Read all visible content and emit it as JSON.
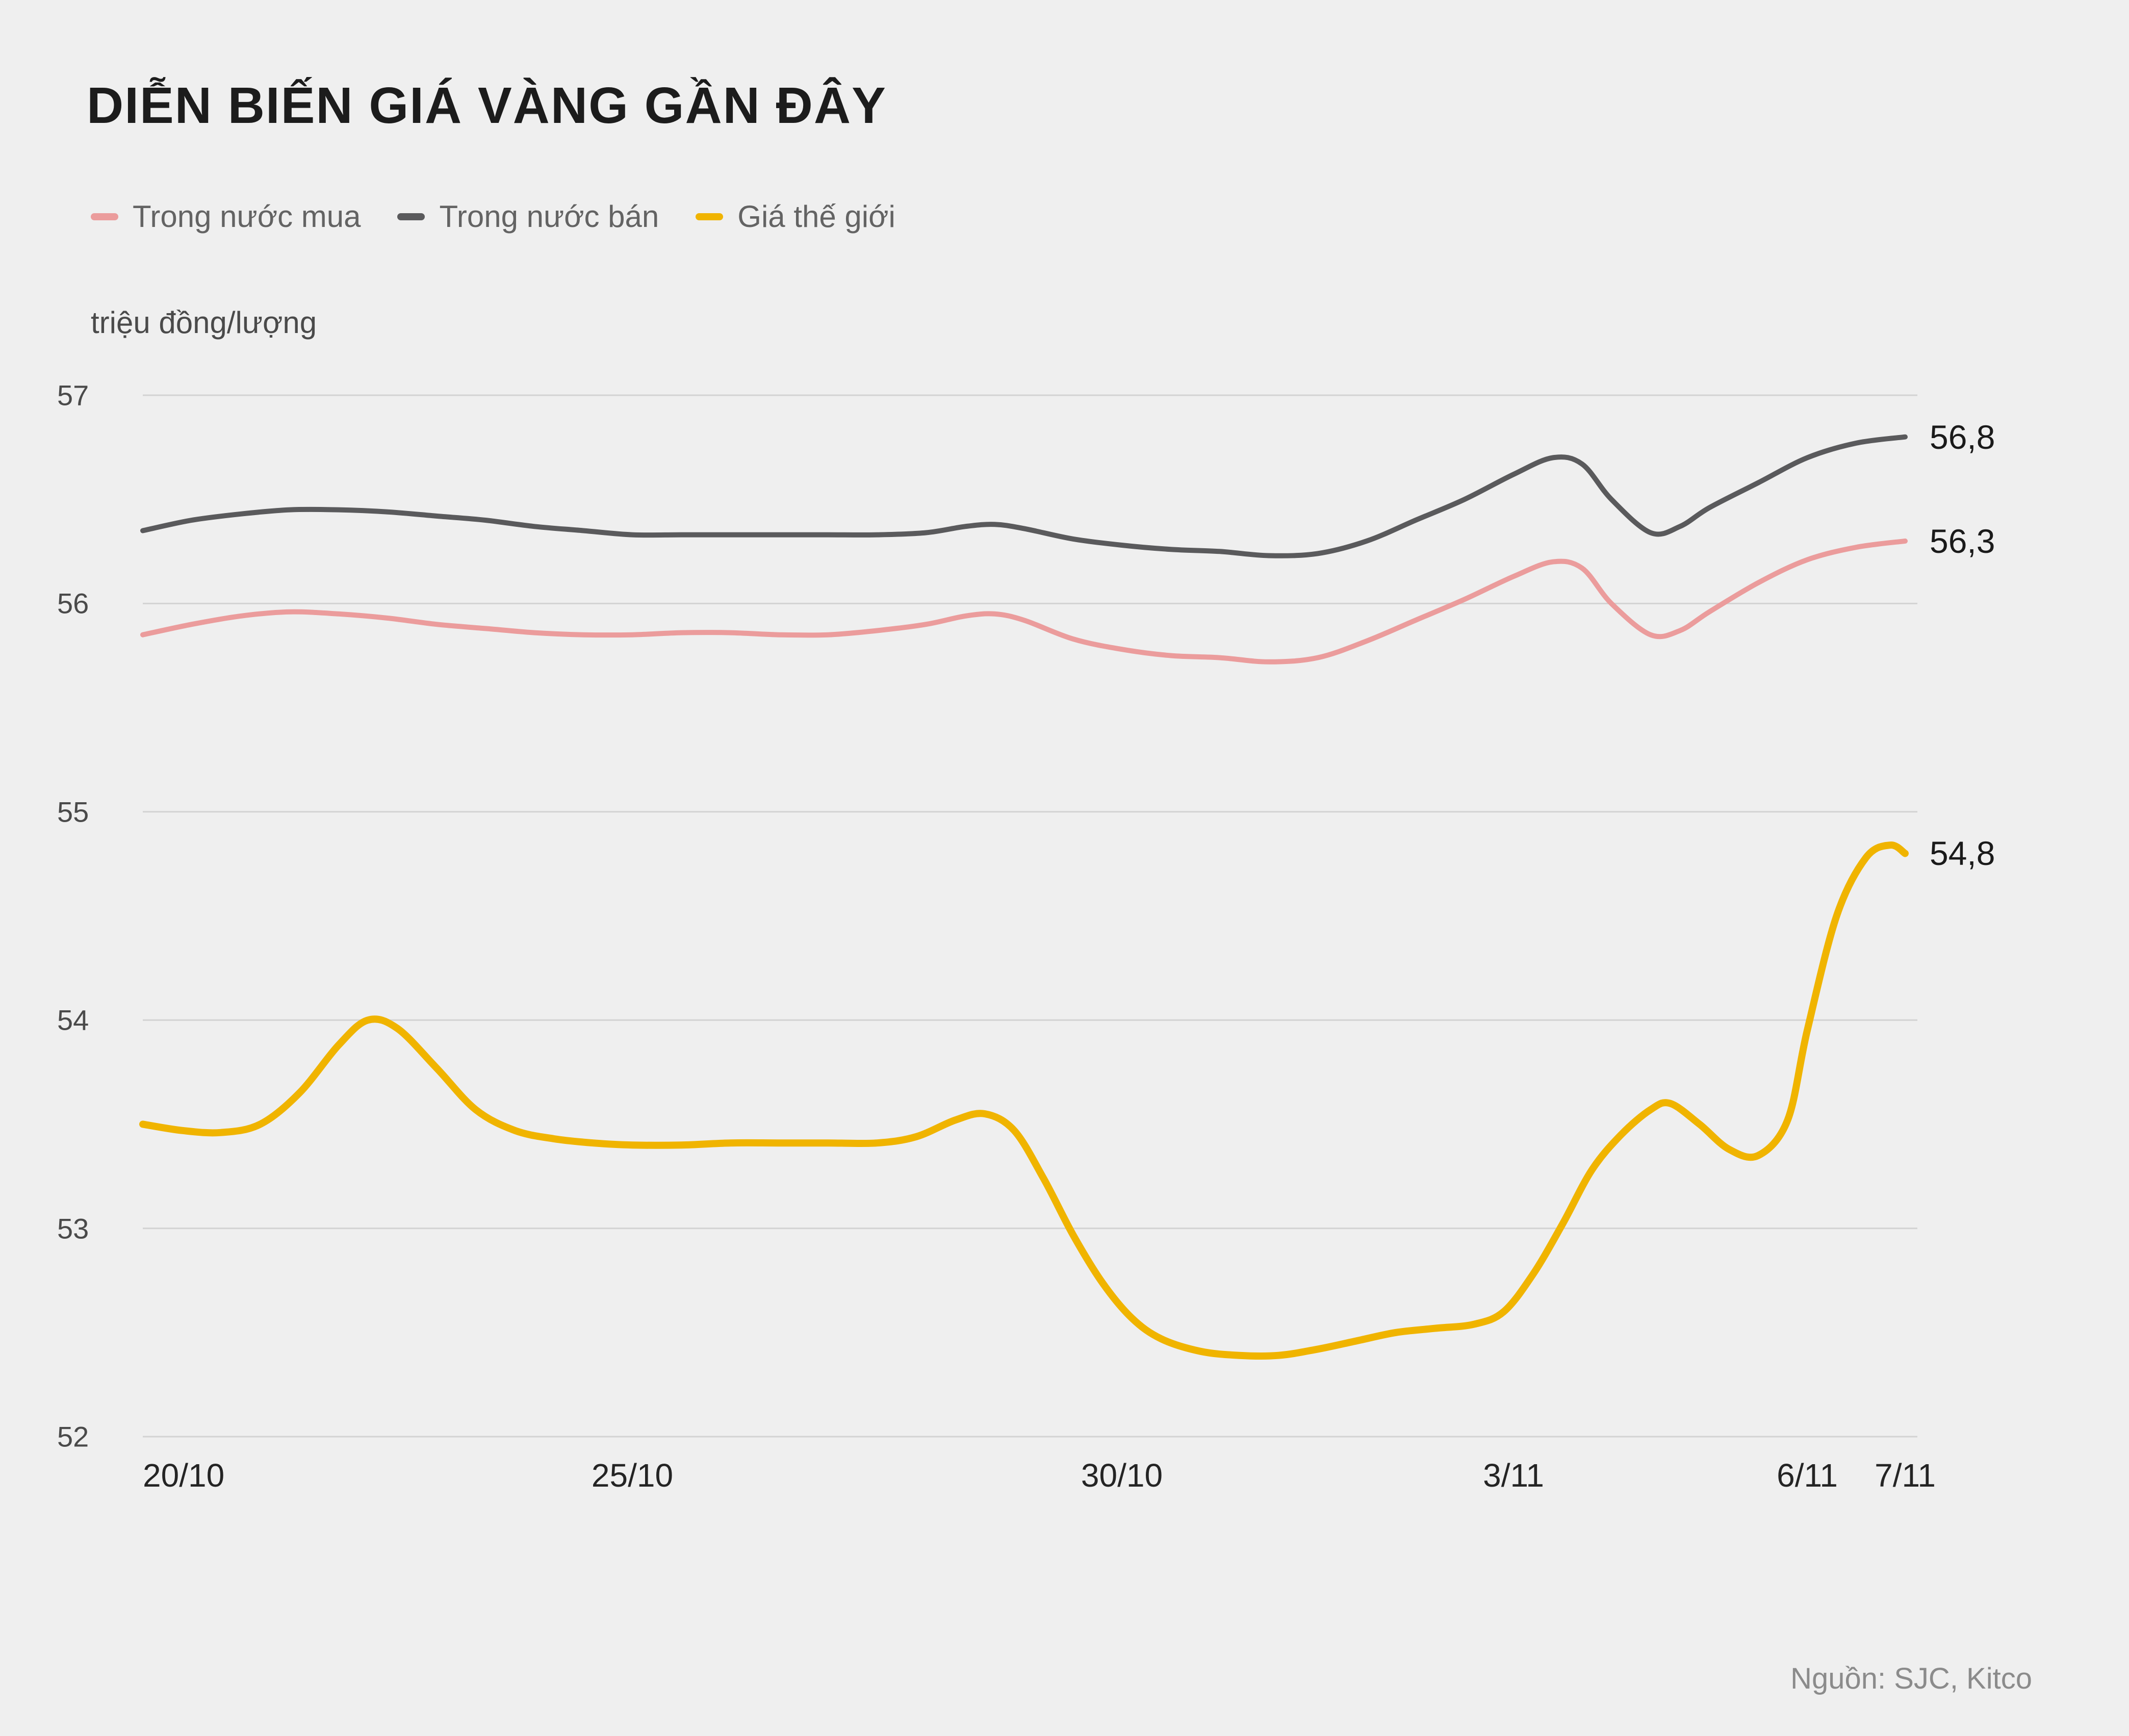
{
  "title": "DIỄN BIẾN GIÁ VÀNG GẦN ĐÂY",
  "unit_label": "triệu đồng/lượng",
  "source": "Nguồn: SJC, Kitco",
  "legend": [
    {
      "label": "Trong nước mua",
      "color": "#eb9c9c"
    },
    {
      "label": "Trong nước bán",
      "color": "#5a5a5c"
    },
    {
      "label": "Giá thế giới",
      "color": "#f0b400"
    }
  ],
  "chart_data": {
    "type": "line",
    "title": "DIỄN BIẾN GIÁ VÀNG GẦN ĐÂY",
    "ylabel": "triệu đồng/lượng",
    "ylim": [
      52,
      57
    ],
    "y_ticks": [
      57,
      56,
      55,
      54,
      53,
      52
    ],
    "x_unit": "days since 20/10",
    "x_ticks": [
      {
        "day": 0,
        "label": "20/10"
      },
      {
        "day": 5,
        "label": "25/10"
      },
      {
        "day": 10,
        "label": "30/10"
      },
      {
        "day": 14,
        "label": "3/11"
      },
      {
        "day": 17,
        "label": "6/11"
      },
      {
        "day": 18,
        "label": "7/11"
      }
    ],
    "grid": "horizontal",
    "legend_position": "top-left",
    "series": [
      {
        "name": "Trong nước mua",
        "color": "#eb9c9c",
        "line_width": 10,
        "end_label": "56,3",
        "points": [
          [
            0,
            55.85
          ],
          [
            0.5,
            55.9
          ],
          [
            1,
            55.94
          ],
          [
            1.5,
            55.96
          ],
          [
            2,
            55.95
          ],
          [
            2.5,
            55.93
          ],
          [
            3,
            55.9
          ],
          [
            3.5,
            55.88
          ],
          [
            4,
            55.86
          ],
          [
            4.5,
            55.85
          ],
          [
            5,
            55.85
          ],
          [
            5.5,
            55.86
          ],
          [
            6,
            55.86
          ],
          [
            6.5,
            55.85
          ],
          [
            7,
            55.85
          ],
          [
            7.5,
            55.87
          ],
          [
            8,
            55.9
          ],
          [
            8.4,
            55.94
          ],
          [
            8.7,
            55.95
          ],
          [
            9,
            55.92
          ],
          [
            9.5,
            55.83
          ],
          [
            10,
            55.78
          ],
          [
            10.5,
            55.75
          ],
          [
            11,
            55.74
          ],
          [
            11.5,
            55.72
          ],
          [
            12,
            55.74
          ],
          [
            12.5,
            55.82
          ],
          [
            13,
            55.92
          ],
          [
            13.5,
            56.02
          ],
          [
            14,
            56.13
          ],
          [
            14.4,
            56.2
          ],
          [
            14.7,
            56.17
          ],
          [
            15,
            56.0
          ],
          [
            15.4,
            55.85
          ],
          [
            15.7,
            55.87
          ],
          [
            16,
            55.96
          ],
          [
            16.5,
            56.1
          ],
          [
            17,
            56.21
          ],
          [
            17.5,
            56.27
          ],
          [
            18,
            56.3
          ]
        ]
      },
      {
        "name": "Trong nước bán",
        "color": "#5a5a5c",
        "line_width": 10,
        "end_label": "56,8",
        "points": [
          [
            0,
            56.35
          ],
          [
            0.5,
            56.4
          ],
          [
            1,
            56.43
          ],
          [
            1.5,
            56.45
          ],
          [
            2,
            56.45
          ],
          [
            2.5,
            56.44
          ],
          [
            3,
            56.42
          ],
          [
            3.5,
            56.4
          ],
          [
            4,
            56.37
          ],
          [
            4.5,
            56.35
          ],
          [
            5,
            56.33
          ],
          [
            5.5,
            56.33
          ],
          [
            6,
            56.33
          ],
          [
            6.5,
            56.33
          ],
          [
            7,
            56.33
          ],
          [
            7.5,
            56.33
          ],
          [
            8,
            56.34
          ],
          [
            8.4,
            56.37
          ],
          [
            8.7,
            56.38
          ],
          [
            9,
            56.36
          ],
          [
            9.5,
            56.31
          ],
          [
            10,
            56.28
          ],
          [
            10.5,
            56.26
          ],
          [
            11,
            56.25
          ],
          [
            11.5,
            56.23
          ],
          [
            12,
            56.24
          ],
          [
            12.5,
            56.3
          ],
          [
            13,
            56.4
          ],
          [
            13.5,
            56.5
          ],
          [
            14,
            56.62
          ],
          [
            14.4,
            56.7
          ],
          [
            14.7,
            56.67
          ],
          [
            15,
            56.5
          ],
          [
            15.4,
            56.34
          ],
          [
            15.7,
            56.37
          ],
          [
            16,
            56.46
          ],
          [
            16.5,
            56.58
          ],
          [
            17,
            56.7
          ],
          [
            17.5,
            56.77
          ],
          [
            18,
            56.8
          ]
        ]
      },
      {
        "name": "Giá thế giới",
        "color": "#f0b400",
        "line_width": 14,
        "end_label": "54,8",
        "points": [
          [
            0,
            53.5
          ],
          [
            0.4,
            53.47
          ],
          [
            0.8,
            53.46
          ],
          [
            1.2,
            53.5
          ],
          [
            1.6,
            53.65
          ],
          [
            2.0,
            53.88
          ],
          [
            2.3,
            54.0
          ],
          [
            2.6,
            53.96
          ],
          [
            3.0,
            53.77
          ],
          [
            3.4,
            53.57
          ],
          [
            3.8,
            53.47
          ],
          [
            4.2,
            53.43
          ],
          [
            4.6,
            53.41
          ],
          [
            5.0,
            53.4
          ],
          [
            5.5,
            53.4
          ],
          [
            6.0,
            53.41
          ],
          [
            6.5,
            53.41
          ],
          [
            7.0,
            53.41
          ],
          [
            7.5,
            53.41
          ],
          [
            7.9,
            53.44
          ],
          [
            8.3,
            53.52
          ],
          [
            8.6,
            53.55
          ],
          [
            8.9,
            53.47
          ],
          [
            9.2,
            53.24
          ],
          [
            9.5,
            52.97
          ],
          [
            9.8,
            52.74
          ],
          [
            10.1,
            52.57
          ],
          [
            10.4,
            52.47
          ],
          [
            10.8,
            52.41
          ],
          [
            11.2,
            52.39
          ],
          [
            11.6,
            52.39
          ],
          [
            12.0,
            52.42
          ],
          [
            12.4,
            52.46
          ],
          [
            12.8,
            52.5
          ],
          [
            13.2,
            52.52
          ],
          [
            13.6,
            52.54
          ],
          [
            13.9,
            52.6
          ],
          [
            14.2,
            52.78
          ],
          [
            14.5,
            53.02
          ],
          [
            14.8,
            53.28
          ],
          [
            15.1,
            53.45
          ],
          [
            15.4,
            53.57
          ],
          [
            15.6,
            53.6
          ],
          [
            15.9,
            53.5
          ],
          [
            16.2,
            53.38
          ],
          [
            16.5,
            53.35
          ],
          [
            16.8,
            53.52
          ],
          [
            17.0,
            53.95
          ],
          [
            17.3,
            54.5
          ],
          [
            17.6,
            54.78
          ],
          [
            17.85,
            54.84
          ],
          [
            18,
            54.8
          ]
        ]
      }
    ]
  }
}
